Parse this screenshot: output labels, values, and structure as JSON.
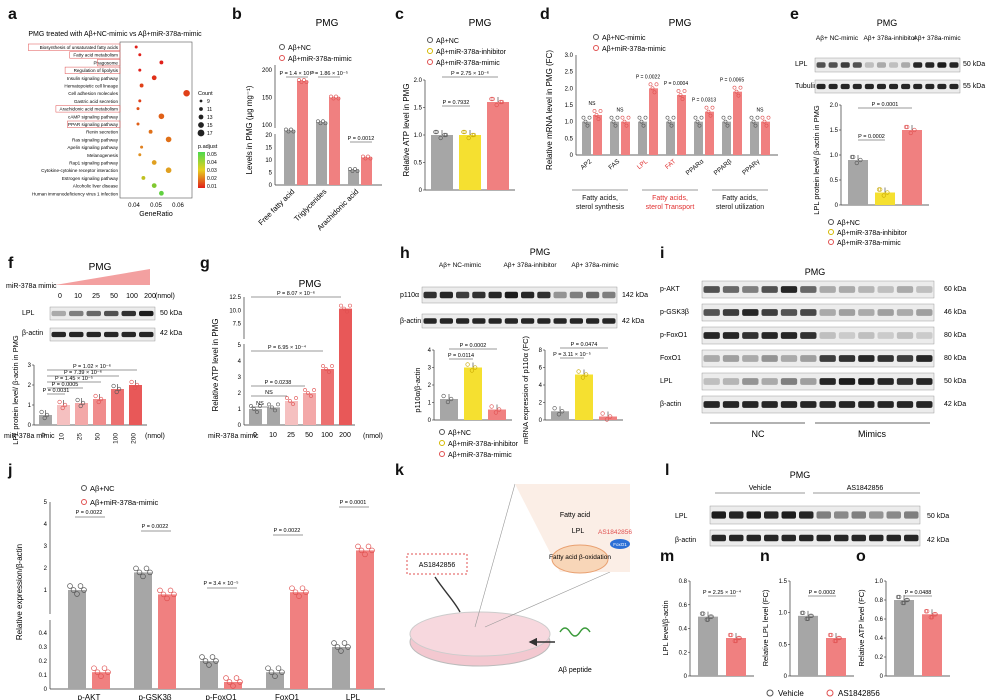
{
  "labels": {
    "a": "a",
    "b": "b",
    "c": "c",
    "d": "d",
    "e": "e",
    "f": "f",
    "g": "g",
    "h": "h",
    "i": "i",
    "j": "j",
    "k": "k",
    "l": "l",
    "m": "m",
    "n": "n",
    "o": "o"
  },
  "colors": {
    "grey": "#a6a6a6",
    "red": "#f08080",
    "darkred": "#e05050",
    "yellow": "#f5e030",
    "pink": "#f3b0b0",
    "blot": "#222"
  },
  "panel_a": {
    "title": "PMG treated with Aβ+NC-mimic vs Aβ+miR-378a-mimic",
    "xlabel": "GeneRatio",
    "xticks": [
      "0.04",
      "0.05",
      "0.06"
    ],
    "count_title": "Count",
    "count_values": [
      "9",
      "11",
      "13",
      "15",
      "17"
    ],
    "padj_title": "p.adjust",
    "padj_values": [
      "0.05",
      "0.04",
      "0.03",
      "0.02",
      "0.01"
    ],
    "pathways": [
      "Biosynthesis of unsaturated fatty acids",
      "Fatty acid metabolism",
      "Phagosome",
      "Regulation of lipolysis",
      "Insulin signaling pathway",
      "Hematopoietic cell lineage",
      "Cell adhesion molecules",
      "Gastric acid secretion",
      "Arachidonic acid metabolism",
      "cAMP signaling pathway",
      "PPAR signaling pathway",
      "Renin secretion",
      "Ras signaling pathway",
      "Apelin signaling pathway",
      "Melanogenesis",
      "Rap1 signaling pathway",
      "Cytokine-cytokine receptor interaction",
      "Estrogen signaling pathway",
      "Alcoholic liver disease",
      "Human immunodeficiency virus 1 infection"
    ],
    "boxed": [
      0,
      1,
      2,
      3,
      8,
      10
    ]
  },
  "panel_b": {
    "title": "PMG",
    "ylabel": "Levels in PMG (μg mg⁻¹)",
    "legend": [
      "Aβ+NC",
      "Aβ+miR-378a-mimic"
    ],
    "categories": [
      "Free fatty acid",
      "Triglycerides",
      "Arachidonic acid"
    ],
    "yticks_top": [
      "100",
      "150",
      "200"
    ],
    "yticks_bottom": [
      "0",
      "5",
      "10",
      "15",
      "20"
    ],
    "pvals": [
      "P = 1.4 × 10⁻⁵",
      "P = 1.86 × 10⁻⁵",
      "P = 0.0012"
    ]
  },
  "panel_c": {
    "title": "PMG",
    "ylabel": "Relative ATP level in PMG",
    "legend": [
      "Aβ+NC",
      "Aβ+miR-378a-inhibitor",
      "Aβ+miR-378a-mimic"
    ],
    "yticks": [
      "0",
      "0.5",
      "1.0",
      "1.5",
      "2.0"
    ],
    "pvals": [
      "P = 0.7932",
      "P = 2.75 × 10⁻⁶"
    ]
  },
  "panel_d": {
    "title": "PMG",
    "ylabel": "Relative mRNA level in PMG (FC)",
    "legend": [
      "Aβ+NC-mimic",
      "Aβ+miR-378a-mimic"
    ],
    "genes": [
      "AP2",
      "FAS",
      "LPL",
      "FAT",
      "PPARα",
      "PPARβ",
      "PPARγ"
    ],
    "pvals": [
      "NS",
      "NS",
      "P = 0.0022",
      "P = 0.0004",
      "P = 0.0313",
      "P = 0.0065",
      "NS"
    ],
    "yticks": [
      "0",
      "0.5",
      "1.0",
      "1.5",
      "2.0",
      "2.5",
      "3.0"
    ],
    "groups": [
      "Fatty acids, sterol synthesis",
      "Fatty acids, sterol Transport",
      "Fatty acids, sterol utilization"
    ]
  },
  "panel_e": {
    "title": "PMG",
    "cols": [
      "Aβ+ NC-mimic",
      "Aβ+ 378a-inhibitor",
      "Aβ+ 378a-mimic"
    ],
    "rows": [
      "LPL",
      "Tubulin"
    ],
    "kda": [
      "50 kDa",
      "55 kDa"
    ],
    "ylabel": "LPL protein level/ β-actin in PMG",
    "yticks": [
      "0",
      "0.5",
      "1.0",
      "1.5",
      "2.0"
    ],
    "pvals": [
      "P = 0.0002",
      "P = 0.0001"
    ],
    "legend": [
      "Aβ+NC",
      "Aβ+miR-378a-inhibitor",
      "Aβ+miR-378a-mimic"
    ]
  },
  "panel_f": {
    "title": "PMG",
    "mimic_label": "miR-378a mimic",
    "doses": [
      "0",
      "10",
      "25",
      "50",
      "100",
      "200"
    ],
    "unit": "(nmol)",
    "rows": [
      "LPL",
      "β-actin"
    ],
    "kda": [
      "50 kDa",
      "42 kDa"
    ],
    "ylabel": "LPL protein level/ β-actin in PMG",
    "yticks": [
      "0",
      "1",
      "2",
      "3"
    ],
    "pvals": [
      "P = 1.02 × 10⁻⁶",
      "P = 7.39 × 10⁻⁶",
      "P = 1.45 × 10⁻⁵",
      "P = 0.0005",
      "P = 0.0031"
    ],
    "xlabel": "miR-378a mimic"
  },
  "panel_g": {
    "title": "PMG",
    "ylabel": "Relative ATP level in PMG",
    "yticks_top": [
      "7.5",
      "10.0",
      "12.5"
    ],
    "yticks_bottom": [
      "0",
      "1",
      "2",
      "3",
      "4",
      "5"
    ],
    "doses": [
      "0",
      "10",
      "25",
      "50",
      "100",
      "200"
    ],
    "unit": "(nmol)",
    "xlabel": "miR-378a mimic",
    "pvals": [
      "NS",
      "NS",
      "P = 0.0238",
      "P = 6.95 × 10⁻⁴",
      "P = 8.07 × 10⁻⁶"
    ]
  },
  "panel_h": {
    "title": "PMG",
    "cols": [
      "Aβ+ NC-mimic",
      "Aβ+ 378a-inhibitor",
      "Aβ+ 378a-mimic"
    ],
    "rows": [
      "p110α",
      "β-actin"
    ],
    "kda": [
      "142 kDa",
      "42 kDa"
    ],
    "ylabel1": "p110α/β-actin",
    "ylabel2": "mRNA expression of p110α (FC)",
    "pvals1": [
      "P = 0.0114",
      "P = 0.0002"
    ],
    "pvals2": [
      "P = 0.0474",
      "P = 3.11 × 10⁻⁵"
    ],
    "yticks1": [
      "0",
      "1",
      "2",
      "3",
      "4"
    ],
    "yticks2": [
      "0",
      "2",
      "4",
      "6",
      "8"
    ],
    "legend": [
      "Aβ+NC",
      "Aβ+miR-378a-inhibitor",
      "Aβ+miR-378a-mimic"
    ]
  },
  "panel_i": {
    "title": "PMG",
    "rows": [
      "p-AKT",
      "p-GSK3β",
      "p-FoxO1",
      "FoxO1",
      "LPL",
      "β-actin"
    ],
    "kda": [
      "60 kDa",
      "46 kDa",
      "80 kDa",
      "80 kDa",
      "50 kDa",
      "42 kDa"
    ],
    "groups": [
      "NC",
      "Mimics"
    ]
  },
  "panel_j": {
    "ylabel": "Relative expression/β-actin",
    "legend": [
      "Aβ+NC",
      "Aβ+miR-378a-mimic"
    ],
    "categories": [
      "p-AKT",
      "p-GSK3β",
      "p-FoxO1",
      "FoxO1",
      "LPL"
    ],
    "pvals": [
      "P = 0.0022",
      "P = 0.0022",
      "P = 3.4 × 10⁻⁵",
      "P = 0.0022",
      "P = 0.0001"
    ],
    "yticks_top": [
      "1",
      "2",
      "3",
      "4",
      "5"
    ],
    "yticks_bottom": [
      "0",
      "0.1",
      "0.2",
      "0.3",
      "0.4"
    ]
  },
  "panel_k": {
    "drug": "AS1842856",
    "fa": "Fatty acid",
    "lpl": "LPL",
    "foxo": "FoxO1",
    "beta": "Fatty acid β-oxidation",
    "peptide": "Aβ peptide"
  },
  "panel_l": {
    "title": "PMG",
    "groups": [
      "Vehicle",
      "AS1842856"
    ],
    "rows": [
      "LPL",
      "β-actin"
    ],
    "kda": [
      "50 kDa",
      "42 kDa"
    ]
  },
  "panel_m": {
    "ylabel": "LPL level/β-actin",
    "pval": "P = 2.25 × 10⁻⁴",
    "yticks": [
      "0",
      "0.2",
      "0.4",
      "0.6",
      "0.8"
    ]
  },
  "panel_n": {
    "ylabel": "Relative LPL level (FC)",
    "pval": "P = 0.0002",
    "yticks": [
      "0",
      "0.5",
      "1.0",
      "1.5"
    ]
  },
  "panel_o": {
    "ylabel": "Relative ATP level (FC)",
    "pval": "P = 0.0488",
    "yticks": [
      "0",
      "0.2",
      "0.4",
      "0.6",
      "0.8",
      "1.0"
    ]
  },
  "legend_bottom": [
    "Vehicle",
    "AS1842856"
  ],
  "chart_data": [
    {
      "type": "bar",
      "title": "PMG",
      "categories": [
        "Free fatty acid",
        "Triglycerides",
        "Arachidonic acid"
      ],
      "series": [
        {
          "name": "Aβ+NC",
          "values": [
            90,
            105,
            6
          ]
        },
        {
          "name": "Aβ+miR-378a-mimic",
          "values": [
            180,
            150,
            11
          ]
        }
      ]
    },
    {
      "type": "bar",
      "title": "PMG",
      "categories": [
        "Aβ+NC",
        "Aβ+miR-378a-inhibitor",
        "Aβ+miR-378a-mimic"
      ],
      "values": [
        1.0,
        1.0,
        1.6
      ],
      "ylim": [
        0,
        2
      ]
    },
    {
      "type": "bar",
      "title": "PMG",
      "categories": [
        "AP2",
        "FAS",
        "LPL",
        "FAT",
        "PPARα",
        "PPARβ",
        "PPARγ"
      ],
      "series": [
        {
          "name": "Aβ+NC-mimic",
          "values": [
            1,
            1,
            1,
            1,
            1,
            1,
            1
          ]
        },
        {
          "name": "Aβ+miR-378a-mimic",
          "values": [
            1.2,
            1.0,
            2.0,
            1.8,
            1.3,
            1.9,
            1.0
          ]
        }
      ],
      "ylim": [
        0,
        3
      ]
    },
    {
      "type": "bar",
      "categories": [
        "Aβ+NC",
        "Aβ+miR-378a-inhibitor",
        "Aβ+miR-378a-mimic"
      ],
      "values": [
        0.9,
        0.25,
        1.5
      ],
      "ylim": [
        0,
        2
      ]
    },
    {
      "type": "bar",
      "categories": [
        "0",
        "10",
        "25",
        "50",
        "100",
        "200"
      ],
      "values": [
        0.5,
        1.0,
        1.1,
        1.3,
        1.8,
        2.0
      ],
      "ylim": [
        0,
        3
      ]
    },
    {
      "type": "bar",
      "title": "PMG",
      "categories": [
        "0",
        "10",
        "25",
        "50",
        "100",
        "200"
      ],
      "values": [
        1.0,
        1.1,
        1.5,
        2.0,
        3.5,
        9.8
      ]
    },
    {
      "type": "bar",
      "categories": [
        "Aβ+NC",
        "Aβ+miR-378a-inhibitor",
        "Aβ+miR-378a-mimic"
      ],
      "values": [
        1.2,
        3.0,
        0.6
      ],
      "ylim": [
        0,
        4
      ]
    },
    {
      "type": "bar",
      "categories": [
        "Aβ+NC",
        "Aβ+miR-378a-inhibitor",
        "Aβ+miR-378a-mimic"
      ],
      "values": [
        1.0,
        5.2,
        0.4
      ],
      "ylim": [
        0,
        8
      ]
    },
    {
      "type": "bar",
      "categories": [
        "p-AKT",
        "p-GSK3β",
        "p-FoxO1",
        "FoxO1",
        "LPL"
      ],
      "series": [
        {
          "name": "Aβ+NC",
          "values": [
            1.0,
            1.8,
            0.2,
            0.12,
            0.3
          ]
        },
        {
          "name": "Aβ+miR-378a-mimic",
          "values": [
            0.12,
            0.8,
            0.05,
            0.9,
            2.8
          ]
        }
      ]
    },
    {
      "type": "bar",
      "categories": [
        "Vehicle",
        "AS1842856"
      ],
      "values": [
        0.5,
        0.32
      ],
      "ylim": [
        0,
        0.8
      ]
    },
    {
      "type": "bar",
      "categories": [
        "Vehicle",
        "AS1842856"
      ],
      "values": [
        0.95,
        0.6
      ],
      "ylim": [
        0,
        1.5
      ]
    },
    {
      "type": "bar",
      "categories": [
        "Vehicle",
        "AS1842856"
      ],
      "values": [
        0.8,
        0.65
      ],
      "ylim": [
        0,
        1.0
      ]
    }
  ]
}
